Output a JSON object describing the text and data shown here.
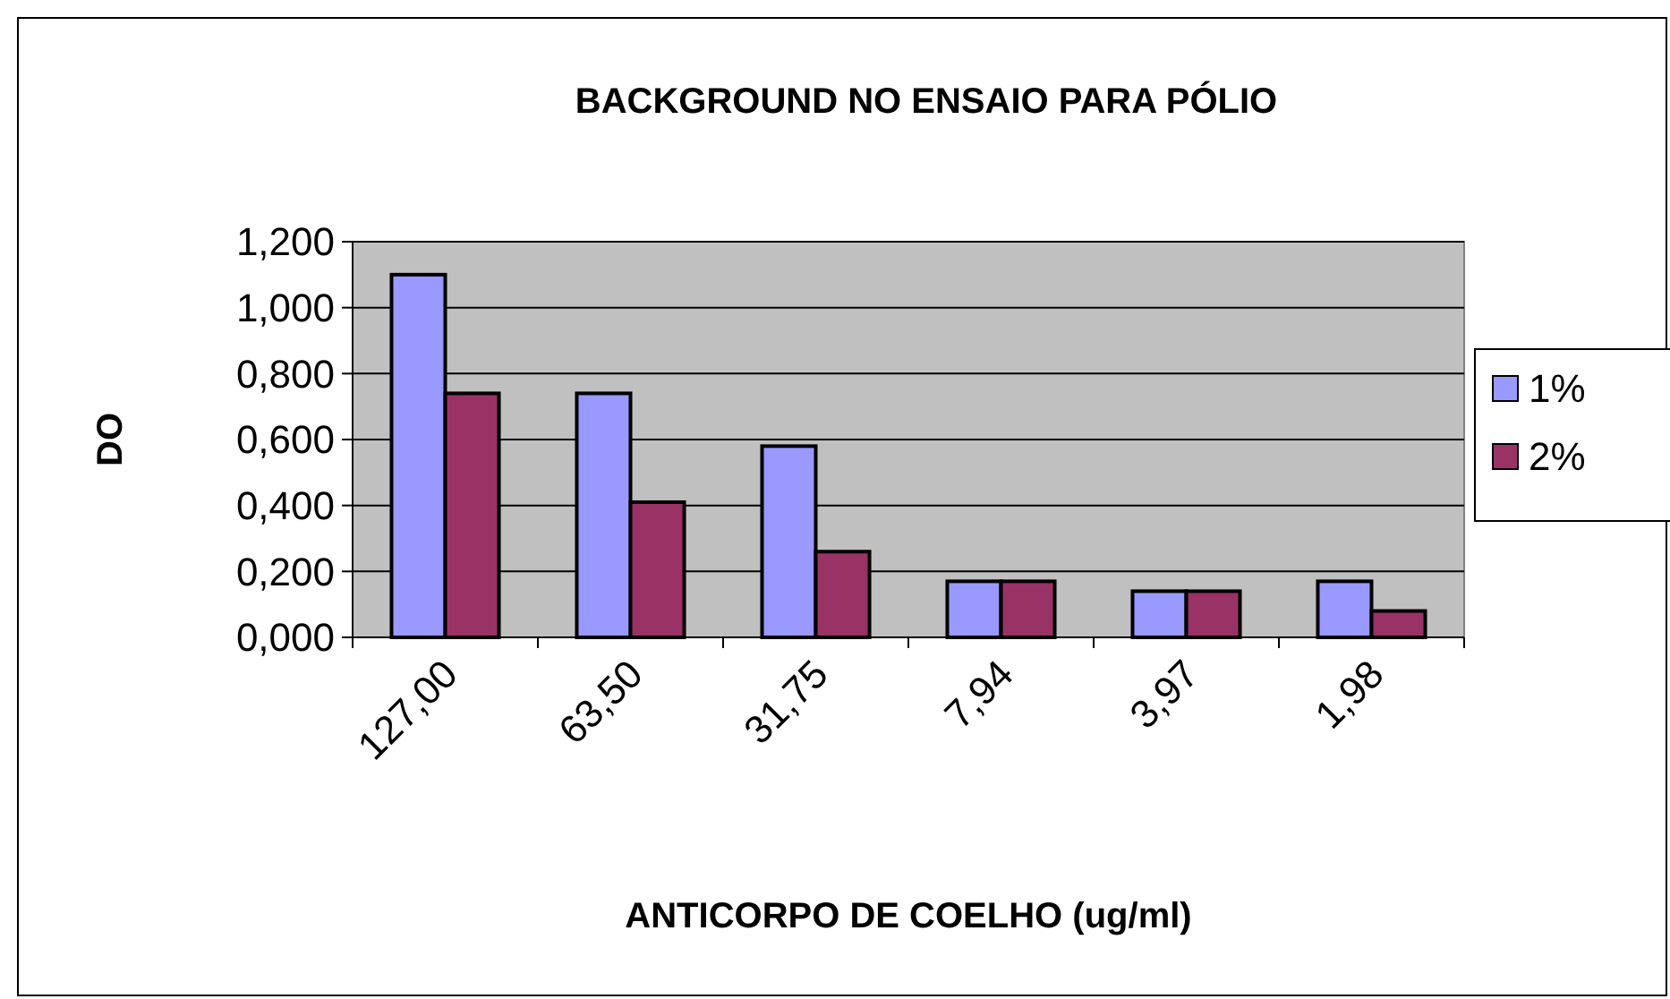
{
  "chart_data": {
    "type": "bar",
    "title": "BACKGROUND NO ENSAIO PARA PÓLIO",
    "xlabel": "ANTICORPO DE COELHO (ug/ml)",
    "ylabel": "DO",
    "categories": [
      "127,00",
      "63,50",
      "31,75",
      "7,94",
      "3,97",
      "1,98"
    ],
    "series": [
      {
        "name": "1%",
        "color": "#9999ff",
        "values": [
          1.1,
          0.74,
          0.58,
          0.17,
          0.14,
          0.17
        ]
      },
      {
        "name": "2%",
        "color": "#993366",
        "values": [
          0.74,
          0.41,
          0.26,
          0.17,
          0.14,
          0.08
        ]
      }
    ],
    "ylim": [
      0,
      1.2
    ],
    "yticks": [
      {
        "value": 0,
        "label": "0,000"
      },
      {
        "value": 0.2,
        "label": "0,200"
      },
      {
        "value": 0.4,
        "label": "0,400"
      },
      {
        "value": 0.6,
        "label": "0,600"
      },
      {
        "value": 0.8,
        "label": "0,800"
      },
      {
        "value": 1,
        "label": "1,000"
      },
      {
        "value": 1.2,
        "label": "1,200"
      }
    ],
    "grid": "y",
    "legend": "right"
  }
}
